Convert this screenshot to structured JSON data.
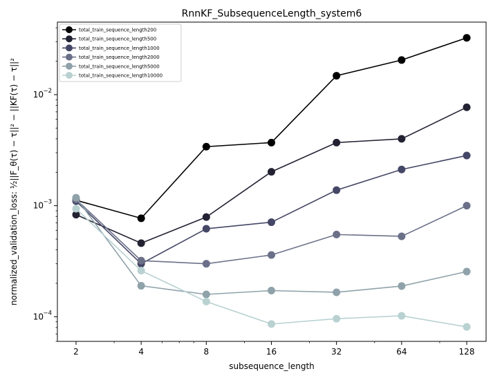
{
  "chart_data": {
    "type": "line",
    "title": "RnnKF_SubsequenceLength_system6",
    "xlabel": "subsequence_length",
    "ylabel": "normalized_validation_loss: ½||F_θ(τ) − τ||² − ||KF(τ) − τ||²",
    "x_scale": "log2",
    "y_scale": "log10",
    "x": [
      2,
      4,
      8,
      16,
      32,
      64,
      128
    ],
    "x_tick_labels": [
      "2",
      "4",
      "8",
      "16",
      "32",
      "64",
      "128"
    ],
    "y_ticks": [
      0.0001,
      0.001,
      0.01
    ],
    "y_tick_labels": [
      "10",
      "10",
      "10"
    ],
    "y_tick_exponents": [
      "−4",
      "−3",
      "−2"
    ],
    "ylim": [
      6e-05,
      0.045
    ],
    "legend_position": "top-left",
    "grid": false,
    "series": [
      {
        "name": "total_train_sequence_length200",
        "color": "#000000",
        "values": [
          0.00112,
          0.00077,
          0.0034,
          0.0037,
          0.0148,
          0.0205,
          0.0325
        ]
      },
      {
        "name": "total_train_sequence_length500",
        "color": "#232233",
        "values": [
          0.00083,
          0.00046,
          0.00079,
          0.00202,
          0.0037,
          0.004,
          0.0077
        ]
      },
      {
        "name": "total_train_sequence_length1000",
        "color": "#454766",
        "values": [
          0.0011,
          0.0003,
          0.00062,
          0.00071,
          0.00138,
          0.00212,
          0.00283
        ]
      },
      {
        "name": "total_train_sequence_length2000",
        "color": "#6b7088",
        "values": [
          0.00114,
          0.00032,
          0.0003,
          0.00036,
          0.00055,
          0.00053,
          0.001
        ]
      },
      {
        "name": "total_train_sequence_length5000",
        "color": "#8fa2aa",
        "values": [
          0.00118,
          0.00019,
          0.000159,
          0.000172,
          0.000166,
          0.000189,
          0.000255
        ]
      },
      {
        "name": "total_train_sequence_length10000",
        "color": "#b9d1d1",
        "values": [
          0.00094,
          0.00026,
          0.000137,
          8.6e-05,
          9.6e-05,
          0.000102,
          8.1e-05
        ]
      }
    ]
  }
}
